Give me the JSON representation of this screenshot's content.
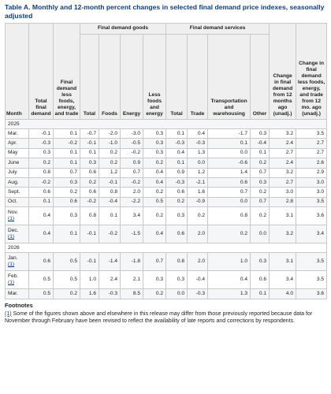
{
  "table_title": "Table A. Monthly and 12-month percent changes in selected final demand price indexes, seasonally adjusted",
  "groups": {
    "goods": "Final demand goods",
    "services": "Final demand services"
  },
  "headers": {
    "month": "Month",
    "total_fd": "Total final demand",
    "fd_less": "Final demand less foods, energy, and trade",
    "goods_total": "Total",
    "foods": "Foods",
    "energy": "Energy",
    "goods_less": "Less foods and energy",
    "serv_total": "Total",
    "trade": "Trade",
    "transport": "Transportation and warehousing",
    "other": "Other",
    "change12": "Change in final demand from 12 months ago (unadj.)",
    "change12_less": "Change in final demand less foods, energy, and trade from 12 mo. ago (unadj.)"
  },
  "rows": [
    {
      "type": "year",
      "label": "2025"
    },
    {
      "type": "data",
      "month": "Mar.",
      "ref": "",
      "v": [
        "-0.1",
        "0.1",
        "-0.7",
        "-2.0",
        "-3.0",
        "0.3",
        "0.1",
        "0.4",
        "-1.7",
        "0.3",
        "3.2",
        "3.5"
      ]
    },
    {
      "type": "data",
      "month": "Apr.",
      "ref": "",
      "v": [
        "-0.3",
        "-0.2",
        "-0.1",
        "-1.0",
        "-0.5",
        "0.3",
        "-0.3",
        "-0.3",
        "0.1",
        "-0.4",
        "2.4",
        "2.7"
      ]
    },
    {
      "type": "data",
      "month": "May",
      "ref": "",
      "v": [
        "0.3",
        "0.1",
        "0.1",
        "0.2",
        "-0.2",
        "0.3",
        "0.4",
        "1.3",
        "0.0",
        "0.1",
        "2.7",
        "2.7"
      ]
    },
    {
      "type": "data",
      "month": "June",
      "ref": "",
      "v": [
        "0.2",
        "0.1",
        "0.3",
        "0.2",
        "0.9",
        "0.2",
        "0.1",
        "0.0",
        "-0.6",
        "0.2",
        "2.4",
        "2.6"
      ]
    },
    {
      "type": "data",
      "month": "July",
      "ref": "",
      "v": [
        "0.8",
        "0.7",
        "0.6",
        "1.2",
        "0.7",
        "0.4",
        "0.9",
        "1.2",
        "1.4",
        "0.7",
        "3.2",
        "2.9"
      ]
    },
    {
      "type": "data",
      "month": "Aug.",
      "ref": "",
      "v": [
        "-0.2",
        "0.3",
        "0.2",
        "-0.1",
        "-0.2",
        "0.4",
        "-0.3",
        "-2.1",
        "0.6",
        "0.3",
        "2.7",
        "3.0"
      ]
    },
    {
      "type": "data",
      "month": "Sept.",
      "ref": "",
      "v": [
        "0.6",
        "0.2",
        "0.6",
        "0.8",
        "2.0",
        "0.2",
        "0.6",
        "1.6",
        "0.7",
        "0.2",
        "3.0",
        "3.0"
      ]
    },
    {
      "type": "data",
      "month": "Oct.",
      "ref": "",
      "v": [
        "0.1",
        "0.6",
        "-0.2",
        "-0.4",
        "-2.2",
        "0.5",
        "0.2",
        "-0.9",
        "0.0",
        "0.7",
        "2.8",
        "3.5"
      ]
    },
    {
      "type": "data",
      "month": "Nov.",
      "ref": "(1)",
      "v": [
        "0.4",
        "0.3",
        "0.8",
        "0.1",
        "3.4",
        "0.2",
        "0.3",
        "0.2",
        "0.8",
        "0.2",
        "3.1",
        "3.6"
      ]
    },
    {
      "type": "data",
      "month": "Dec.",
      "ref": "(1)",
      "v": [
        "0.4",
        "0.1",
        "-0.1",
        "-0.2",
        "-1.5",
        "0.4",
        "0.6",
        "2.0",
        "0.2",
        "0.0",
        "3.2",
        "3.4"
      ]
    },
    {
      "type": "year",
      "label": "2026"
    },
    {
      "type": "data",
      "month": "Jan.",
      "ref": "(1)",
      "v": [
        "0.6",
        "0.5",
        "-0.1",
        "-1.4",
        "-1.8",
        "0.7",
        "0.8",
        "2.0",
        "1.0",
        "0.3",
        "3.1",
        "3.5"
      ]
    },
    {
      "type": "data",
      "month": "Feb.",
      "ref": "(1)",
      "v": [
        "0.5",
        "0.5",
        "1.0",
        "2.4",
        "2.1",
        "0.3",
        "0.3",
        "-0.4",
        "0.4",
        "0.6",
        "3.4",
        "3.5"
      ]
    },
    {
      "type": "data",
      "month": "Mar.",
      "ref": "",
      "v": [
        "0.5",
        "0.2",
        "1.6",
        "-0.3",
        "8.5",
        "0.2",
        "0.0",
        "-0.3",
        "1.3",
        "0.1",
        "4.0",
        "3.6"
      ]
    }
  ],
  "footnotes": {
    "title": "Footnotes",
    "ref": "(1)",
    "text": " Some of the figures shown above and elsewhere in this release may differ from those previously reported because data for November through February have been revised to reflect the availability of late reports and corrections by respondents."
  }
}
